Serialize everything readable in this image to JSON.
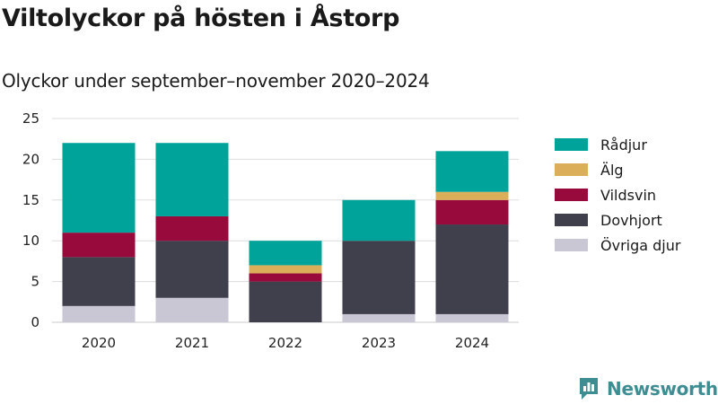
{
  "header": {
    "title": "Viltolyckor på hösten i Åstorp",
    "subtitle": "Olyckor under september–november 2020–2024"
  },
  "brand": {
    "name": "Newsworthy",
    "icon": "chart-logo-icon",
    "color": "#3d8d92"
  },
  "chart_data": {
    "type": "bar",
    "stacked": true,
    "title": "Viltolyckor på hösten i Åstorp",
    "subtitle": "Olyckor under september–november 2020–2024",
    "categories": [
      "2020",
      "2021",
      "2022",
      "2023",
      "2024"
    ],
    "series": [
      {
        "name": "Övriga djur",
        "color": "#c9c7d4",
        "values": [
          2,
          3,
          0,
          1,
          1
        ]
      },
      {
        "name": "Dovhjort",
        "color": "#403f4c",
        "values": [
          6,
          7,
          5,
          9,
          11
        ]
      },
      {
        "name": "Vildsvin",
        "color": "#990a3c",
        "values": [
          3,
          3,
          1,
          0,
          3
        ]
      },
      {
        "name": "Älg",
        "color": "#dbaf5a",
        "values": [
          0,
          0,
          1,
          0,
          1
        ]
      },
      {
        "name": "Rådjur",
        "color": "#00a39a",
        "values": [
          11,
          9,
          3,
          5,
          5
        ]
      }
    ],
    "legend_order": [
      "Rådjur",
      "Älg",
      "Vildsvin",
      "Dovhjort",
      "Övriga djur"
    ],
    "yticks": [
      0,
      5,
      10,
      15,
      20,
      25
    ],
    "ylim": [
      0,
      25
    ],
    "grid": true,
    "legend": "right"
  }
}
